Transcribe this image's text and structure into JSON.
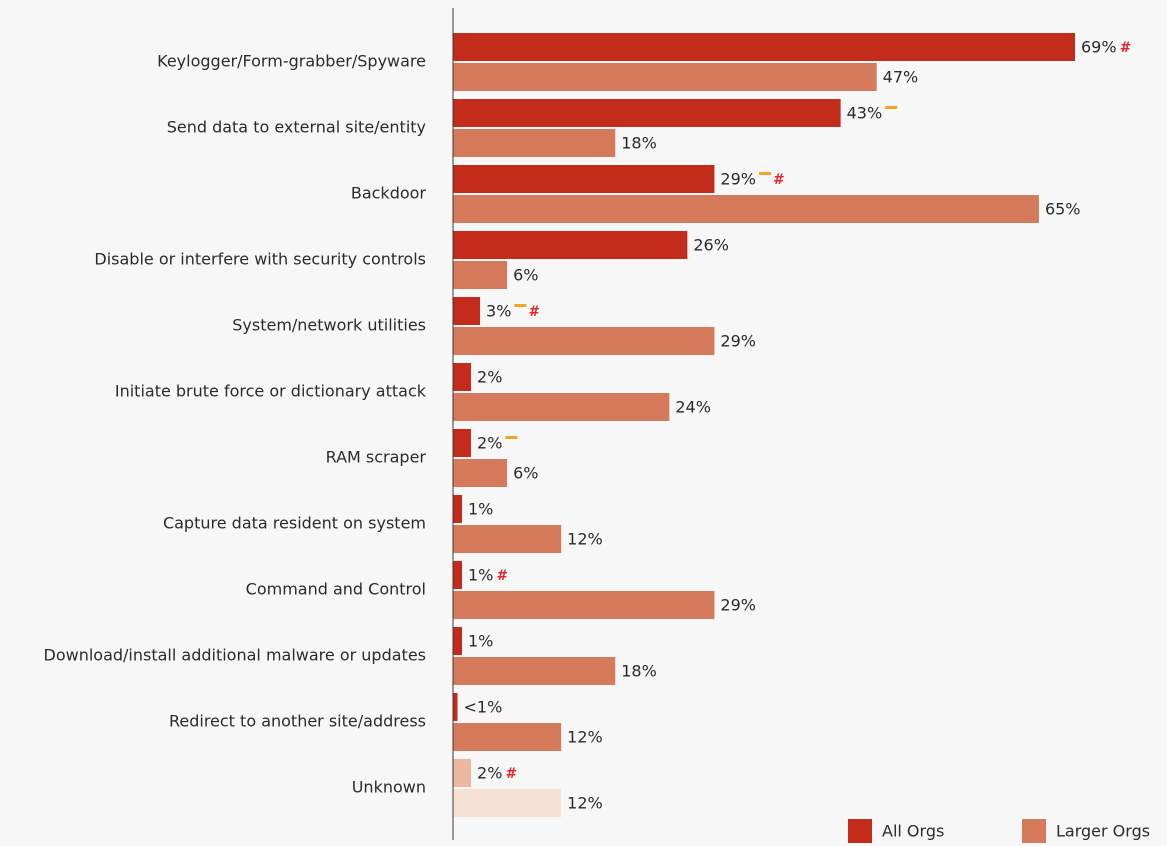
{
  "colors": {
    "all_orgs": "#c32b1b",
    "larger_orgs": "#d67a5c",
    "all_orgs_faded": "#ecb8a2",
    "larger_orgs_faded": "#f6e1d5",
    "dash_marker": "#f4a623",
    "hash_marker": "#e8262a"
  },
  "legend": {
    "all_orgs": "All Orgs",
    "larger_orgs": "Larger Orgs"
  },
  "chart_data": {
    "type": "bar",
    "orientation": "horizontal",
    "xlim": [
      0,
      75
    ],
    "grid": false,
    "legend_position": "bottom-right",
    "categories": [
      "Keylogger/Form-grabber/Spyware",
      "Send data to external site/entity",
      "Backdoor",
      "Disable or interfere with security controls",
      "System/network utilities",
      "Initiate brute force or dictionary attack",
      "RAM scraper",
      "Capture data resident on system",
      "Command and Control",
      "Download/install additional malware or updates",
      "Redirect to another site/address",
      "Unknown"
    ],
    "series": [
      {
        "name": "All Orgs",
        "values": [
          69,
          43,
          29,
          26,
          3,
          2,
          2,
          1,
          1,
          1,
          0.5,
          2
        ],
        "labels": [
          "69%",
          "43%",
          "29%",
          "26%",
          "3%",
          "2%",
          "2%",
          "1%",
          "1%",
          "1%",
          "<1%",
          "2%"
        ],
        "markers": [
          [
            "hash"
          ],
          [
            "dash"
          ],
          [
            "dash",
            "hash"
          ],
          [],
          [
            "dash",
            "hash"
          ],
          [],
          [
            "dash"
          ],
          [],
          [
            "hash"
          ],
          [],
          [],
          [
            "hash"
          ]
        ]
      },
      {
        "name": "Larger Orgs",
        "values": [
          47,
          18,
          65,
          6,
          29,
          24,
          6,
          12,
          29,
          18,
          12,
          12
        ],
        "labels": [
          "47%",
          "18%",
          "65%",
          "6%",
          "29%",
          "24%",
          "6%",
          "12%",
          "29%",
          "18%",
          "12%",
          "12%"
        ]
      }
    ],
    "faded_categories": [
      "Unknown"
    ]
  }
}
